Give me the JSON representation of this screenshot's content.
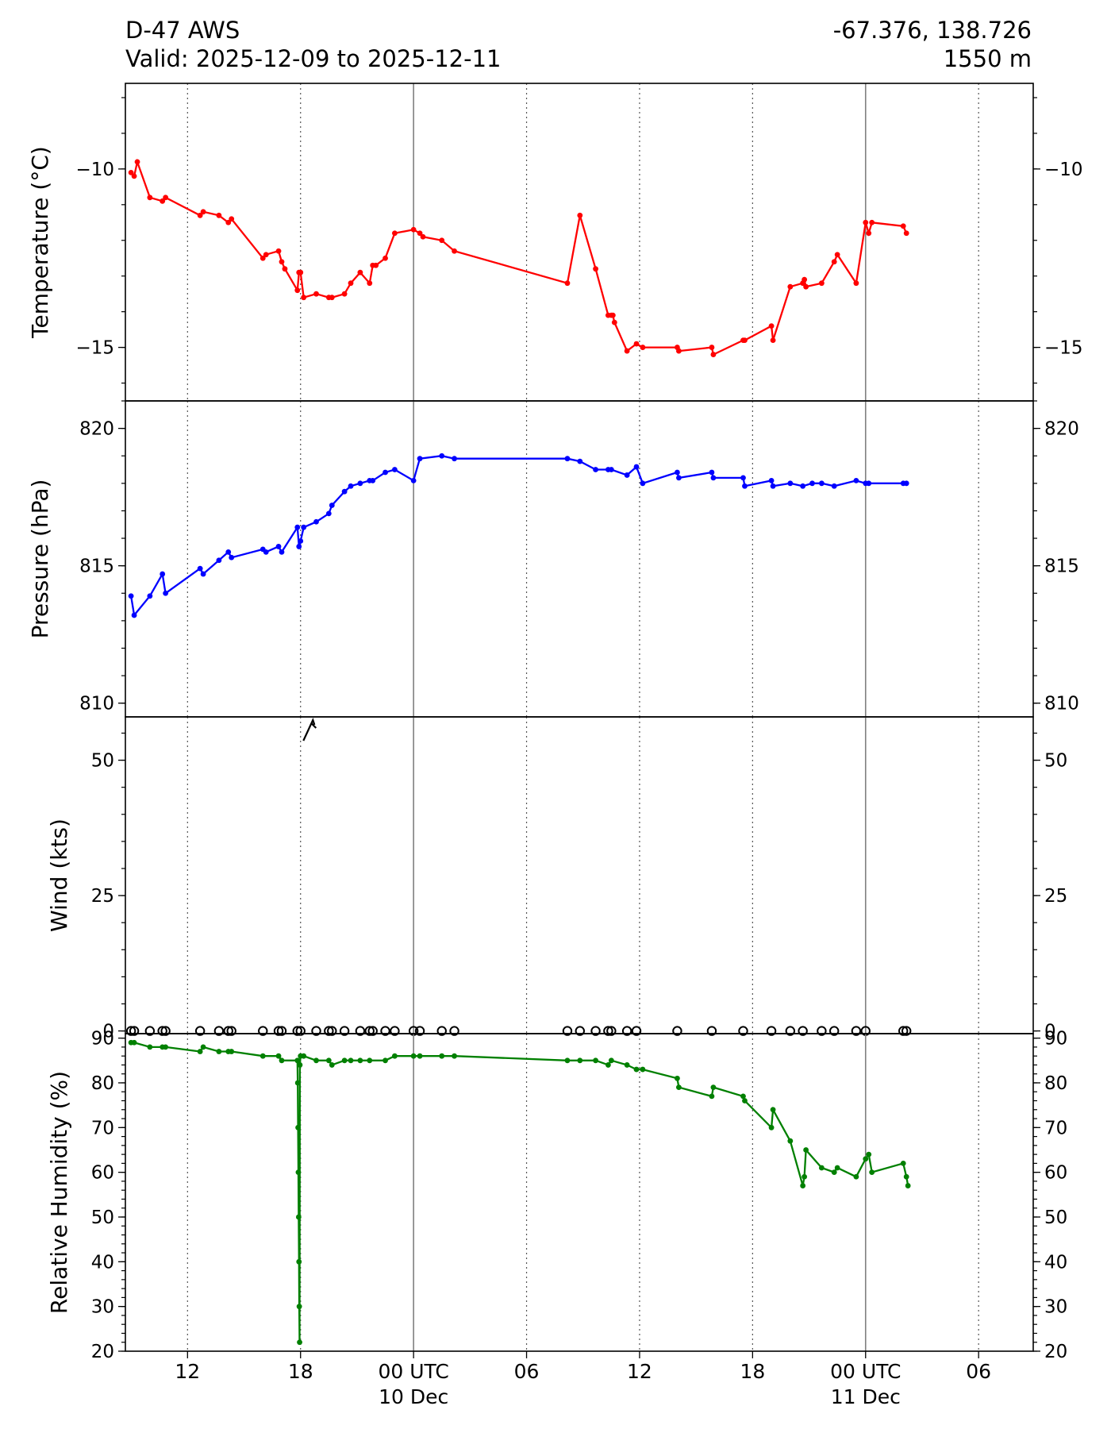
{
  "header": {
    "station": "D-47 AWS",
    "valid": "Valid: 2025-12-09 to 2025-12-11",
    "coords": "-67.376, 138.726",
    "elevation": "1550 m"
  },
  "chart_data": [
    {
      "type": "line",
      "name": "temperature",
      "ylabel": "Temperature ($^\\circ$C)",
      "ylabel_display": "Temperature (°C)",
      "ylim": [
        -16.5,
        -7.6
      ],
      "yticks": [
        -10,
        -15
      ],
      "color": "#ff0000",
      "grid": true,
      "x": [
        "2025-12-09 09:00",
        "2025-12-09 09:10",
        "2025-12-09 09:20",
        "2025-12-09 10:00",
        "2025-12-09 10:40",
        "2025-12-09 10:50",
        "2025-12-09 12:40",
        "2025-12-09 12:50",
        "2025-12-09 13:40",
        "2025-12-09 14:10",
        "2025-12-09 14:20",
        "2025-12-09 16:00",
        "2025-12-09 16:10",
        "2025-12-09 16:50",
        "2025-12-09 17:00",
        "2025-12-09 17:10",
        "2025-12-09 17:50",
        "2025-12-09 17:55",
        "2025-12-09 18:00",
        "2025-12-09 18:10",
        "2025-12-09 18:50",
        "2025-12-09 19:30",
        "2025-12-09 19:40",
        "2025-12-09 20:20",
        "2025-12-09 20:40",
        "2025-12-09 21:10",
        "2025-12-09 21:40",
        "2025-12-09 21:50",
        "2025-12-09 22:00",
        "2025-12-09 22:30",
        "2025-12-09 23:00",
        "2025-12-10 00:00",
        "2025-12-10 00:20",
        "2025-12-10 00:30",
        "2025-12-10 01:30",
        "2025-12-10 02:10",
        "2025-12-10 08:10",
        "2025-12-10 08:50",
        "2025-12-10 09:40",
        "2025-12-10 10:20",
        "2025-12-10 10:30",
        "2025-12-10 10:35",
        "2025-12-10 10:40",
        "2025-12-10 11:20",
        "2025-12-10 11:50",
        "2025-12-10 12:10",
        "2025-12-10 14:00",
        "2025-12-10 14:05",
        "2025-12-10 15:50",
        "2025-12-10 15:55",
        "2025-12-10 17:30",
        "2025-12-10 17:35",
        "2025-12-10 19:00",
        "2025-12-10 19:05",
        "2025-12-10 20:00",
        "2025-12-10 20:40",
        "2025-12-10 20:45",
        "2025-12-10 20:50",
        "2025-12-10 21:40",
        "2025-12-10 22:20",
        "2025-12-10 22:30",
        "2025-12-10 23:30",
        "2025-12-11 00:00",
        "2025-12-11 00:10",
        "2025-12-11 00:20",
        "2025-12-11 02:00",
        "2025-12-11 02:10"
      ],
      "values": [
        -10.1,
        -10.2,
        -9.8,
        -10.8,
        -10.9,
        -10.8,
        -11.3,
        -11.2,
        -11.3,
        -11.5,
        -11.4,
        -12.5,
        -12.4,
        -12.3,
        -12.6,
        -12.8,
        -13.4,
        -12.9,
        -12.9,
        -13.6,
        -13.5,
        -13.6,
        -13.6,
        -13.5,
        -13.2,
        -12.9,
        -13.2,
        -12.7,
        -12.7,
        -12.5,
        -11.8,
        -11.7,
        -11.8,
        -11.9,
        -12.0,
        -12.3,
        -13.2,
        -11.3,
        -12.8,
        -14.1,
        -14.1,
        -14.1,
        -14.3,
        -15.1,
        -14.9,
        -15.0,
        -15.0,
        -15.1,
        -15.0,
        -15.2,
        -14.8,
        -14.8,
        -14.4,
        -14.8,
        -13.3,
        -13.2,
        -13.1,
        -13.3,
        -13.2,
        -12.6,
        -12.4,
        -13.2,
        -11.5,
        -11.8,
        -11.5,
        -11.6,
        -11.8
      ]
    },
    {
      "type": "line",
      "name": "pressure",
      "ylabel": "Pressure (hPa)",
      "ylim": [
        809.5,
        821.0
      ],
      "yticks": [
        810,
        815,
        820
      ],
      "color": "#0000ff",
      "grid": true,
      "x": [
        "2025-12-09 09:00",
        "2025-12-09 09:10",
        "2025-12-09 10:00",
        "2025-12-09 10:40",
        "2025-12-09 10:50",
        "2025-12-09 12:40",
        "2025-12-09 12:50",
        "2025-12-09 13:40",
        "2025-12-09 14:10",
        "2025-12-09 14:20",
        "2025-12-09 16:00",
        "2025-12-09 16:10",
        "2025-12-09 16:50",
        "2025-12-09 17:00",
        "2025-12-09 17:50",
        "2025-12-09 17:55",
        "2025-12-09 18:00",
        "2025-12-09 18:10",
        "2025-12-09 18:50",
        "2025-12-09 19:30",
        "2025-12-09 19:40",
        "2025-12-09 20:20",
        "2025-12-09 20:40",
        "2025-12-09 21:10",
        "2025-12-09 21:40",
        "2025-12-09 21:50",
        "2025-12-09 22:30",
        "2025-12-09 23:00",
        "2025-12-10 00:00",
        "2025-12-10 00:20",
        "2025-12-10 01:30",
        "2025-12-10 02:10",
        "2025-12-10 08:10",
        "2025-12-10 08:50",
        "2025-12-10 09:40",
        "2025-12-10 10:20",
        "2025-12-10 10:30",
        "2025-12-10 11:20",
        "2025-12-10 11:50",
        "2025-12-10 12:10",
        "2025-12-10 14:00",
        "2025-12-10 14:05",
        "2025-12-10 15:50",
        "2025-12-10 15:55",
        "2025-12-10 17:30",
        "2025-12-10 17:35",
        "2025-12-10 19:00",
        "2025-12-10 19:05",
        "2025-12-10 20:00",
        "2025-12-10 20:40",
        "2025-12-10 21:10",
        "2025-12-10 21:40",
        "2025-12-10 22:20",
        "2025-12-10 23:30",
        "2025-12-11 00:00",
        "2025-12-11 00:10",
        "2025-12-11 02:00",
        "2025-12-11 02:10"
      ],
      "values": [
        813.9,
        813.2,
        813.9,
        814.7,
        814.0,
        814.9,
        814.7,
        815.2,
        815.5,
        815.3,
        815.6,
        815.5,
        815.7,
        815.5,
        816.4,
        815.7,
        815.9,
        816.4,
        816.6,
        816.9,
        817.2,
        817.7,
        817.9,
        818.0,
        818.1,
        818.1,
        818.4,
        818.5,
        818.1,
        818.9,
        819.0,
        818.9,
        818.9,
        818.8,
        818.5,
        818.5,
        818.5,
        818.3,
        818.6,
        818.0,
        818.4,
        818.2,
        818.4,
        818.2,
        818.2,
        817.9,
        818.1,
        817.9,
        818.0,
        817.9,
        818.0,
        818.0,
        817.9,
        818.1,
        818.0,
        818.0,
        818.0,
        818.0
      ]
    },
    {
      "type": "scatter",
      "name": "wind",
      "ylabel": "Wind (kts)",
      "ylim": [
        -0.5,
        58.0
      ],
      "yticks": [
        0,
        25,
        50
      ],
      "color": "#000000",
      "grid": true,
      "note_barb": "single wind barb near 2025-12-09 18:00",
      "x": [
        "2025-12-09 09:00",
        "2025-12-09 09:10",
        "2025-12-09 10:00",
        "2025-12-09 10:40",
        "2025-12-09 10:50",
        "2025-12-09 12:40",
        "2025-12-09 13:40",
        "2025-12-09 14:10",
        "2025-12-09 14:20",
        "2025-12-09 16:00",
        "2025-12-09 16:50",
        "2025-12-09 17:00",
        "2025-12-09 17:50",
        "2025-12-09 18:00",
        "2025-12-09 18:50",
        "2025-12-09 19:30",
        "2025-12-09 19:40",
        "2025-12-09 20:20",
        "2025-12-09 21:10",
        "2025-12-09 21:40",
        "2025-12-09 21:50",
        "2025-12-09 22:30",
        "2025-12-09 23:00",
        "2025-12-10 00:00",
        "2025-12-10 00:20",
        "2025-12-10 01:30",
        "2025-12-10 02:10",
        "2025-12-10 08:10",
        "2025-12-10 08:50",
        "2025-12-10 09:40",
        "2025-12-10 10:20",
        "2025-12-10 10:30",
        "2025-12-10 11:20",
        "2025-12-10 11:50",
        "2025-12-10 14:00",
        "2025-12-10 15:50",
        "2025-12-10 17:30",
        "2025-12-10 19:00",
        "2025-12-10 20:00",
        "2025-12-10 20:40",
        "2025-12-10 21:40",
        "2025-12-10 22:20",
        "2025-12-10 23:30",
        "2025-12-11 00:00",
        "2025-12-11 02:00",
        "2025-12-11 02:10"
      ],
      "values": [
        0,
        0,
        0,
        0,
        0,
        0,
        0,
        0,
        0,
        0,
        0,
        0,
        0,
        0,
        0,
        0,
        0,
        0,
        0,
        0,
        0,
        0,
        0,
        0,
        0,
        0,
        0,
        0,
        0,
        0,
        0,
        0,
        0,
        0,
        0,
        0,
        0,
        0,
        0,
        0,
        0,
        0,
        0,
        0,
        0,
        0
      ]
    },
    {
      "type": "line",
      "name": "humidity",
      "ylabel": "Relative Humidity (%)",
      "ylim": [
        20,
        91
      ],
      "yticks": [
        20,
        30,
        40,
        50,
        60,
        70,
        80,
        90
      ],
      "color": "#008000",
      "grid": true,
      "x": [
        "2025-12-09 09:00",
        "2025-12-09 09:10",
        "2025-12-09 10:00",
        "2025-12-09 10:40",
        "2025-12-09 10:50",
        "2025-12-09 12:40",
        "2025-12-09 12:50",
        "2025-12-09 13:40",
        "2025-12-09 14:10",
        "2025-12-09 14:20",
        "2025-12-09 16:00",
        "2025-12-09 16:50",
        "2025-12-09 17:00",
        "2025-12-09 17:50",
        "2025-12-09 17:51",
        "2025-12-09 17:52",
        "2025-12-09 17:53",
        "2025-12-09 17:54",
        "2025-12-09 17:55",
        "2025-12-09 17:56",
        "2025-12-09 17:57",
        "2025-12-09 17:58",
        "2025-12-09 18:00",
        "2025-12-09 18:10",
        "2025-12-09 18:50",
        "2025-12-09 19:30",
        "2025-12-09 19:40",
        "2025-12-09 20:20",
        "2025-12-09 20:40",
        "2025-12-09 21:10",
        "2025-12-09 21:40",
        "2025-12-09 22:30",
        "2025-12-09 23:00",
        "2025-12-10 00:00",
        "2025-12-10 00:20",
        "2025-12-10 01:30",
        "2025-12-10 02:10",
        "2025-12-10 08:10",
        "2025-12-10 08:50",
        "2025-12-10 09:40",
        "2025-12-10 10:20",
        "2025-12-10 10:30",
        "2025-12-10 11:20",
        "2025-12-10 11:50",
        "2025-12-10 12:10",
        "2025-12-10 14:00",
        "2025-12-10 14:05",
        "2025-12-10 15:50",
        "2025-12-10 15:55",
        "2025-12-10 17:30",
        "2025-12-10 17:35",
        "2025-12-10 19:00",
        "2025-12-10 19:05",
        "2025-12-10 20:00",
        "2025-12-10 20:40",
        "2025-12-10 20:45",
        "2025-12-10 20:50",
        "2025-12-10 21:40",
        "2025-12-10 22:20",
        "2025-12-10 22:30",
        "2025-12-10 23:30",
        "2025-12-11 00:00",
        "2025-12-11 00:10",
        "2025-12-11 00:20",
        "2025-12-11 02:00",
        "2025-12-11 02:10",
        "2025-12-11 02:15"
      ],
      "values": [
        89,
        89,
        88,
        88,
        88,
        87,
        88,
        87,
        87,
        87,
        86,
        86,
        85,
        85,
        80,
        70,
        60,
        50,
        40,
        30,
        22,
        84,
        86,
        86,
        85,
        85,
        84,
        85,
        85,
        85,
        85,
        85,
        86,
        86,
        86,
        86,
        86,
        85,
        85,
        85,
        84,
        85,
        84,
        83,
        83,
        81,
        79,
        77,
        79,
        77,
        76,
        70,
        74,
        67,
        57,
        59,
        65,
        61,
        60,
        61,
        59,
        63,
        64,
        60,
        62,
        59,
        57
      ]
    }
  ],
  "x_axis": {
    "range_hours": [
      -15.3,
      32.9
    ],
    "ticks": [
      {
        "h": -12,
        "label": "12",
        "sub": "",
        "major": false
      },
      {
        "h": -6,
        "label": "18",
        "sub": "",
        "major": false
      },
      {
        "h": 0,
        "label": "00 UTC",
        "sub": "10 Dec",
        "major": true
      },
      {
        "h": 6,
        "label": "06",
        "sub": "",
        "major": false
      },
      {
        "h": 12,
        "label": "12",
        "sub": "",
        "major": false
      },
      {
        "h": 18,
        "label": "18",
        "sub": "",
        "major": false
      },
      {
        "h": 24,
        "label": "00 UTC",
        "sub": "11 Dec",
        "major": true
      },
      {
        "h": 30,
        "label": "06",
        "sub": "",
        "major": false
      }
    ]
  }
}
